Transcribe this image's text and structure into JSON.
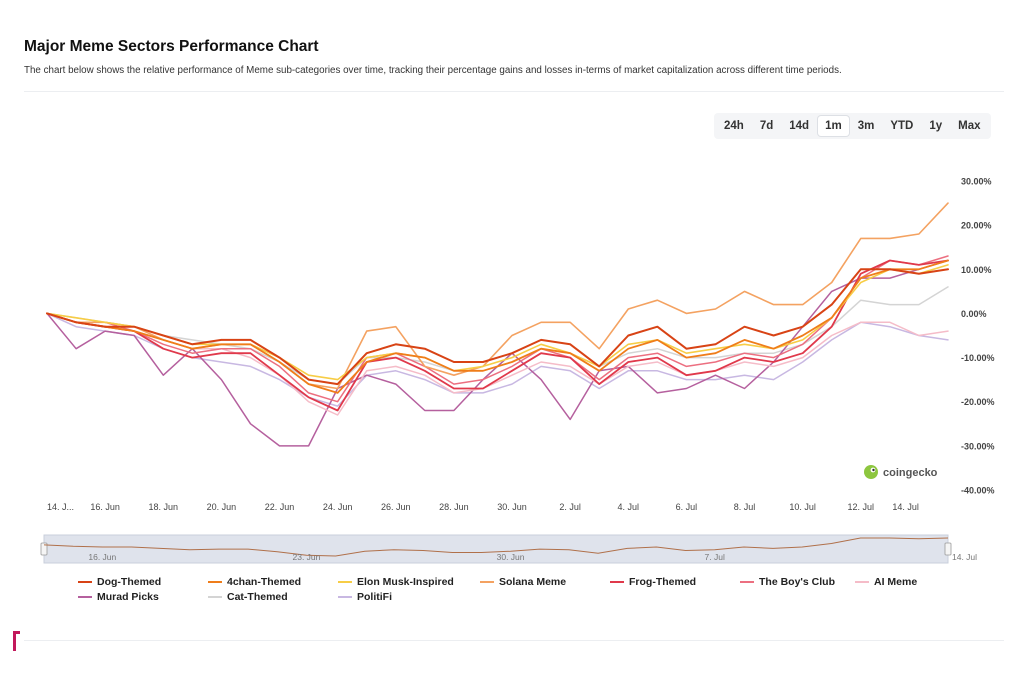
{
  "header": {
    "title": "Major Meme Sectors Performance Chart",
    "subtitle": "The chart below shows the relative performance of Meme sub-categories over time, tracking their percentage gains and losses in-terms of market capitalization across different time periods."
  },
  "range_selector": {
    "options": [
      "24h",
      "7d",
      "14d",
      "1m",
      "3m",
      "YTD",
      "1y",
      "Max"
    ],
    "active": "1m"
  },
  "watermark": {
    "text": "coingecko",
    "logo_icon": "gecko-logo-icon"
  },
  "chart_data": {
    "type": "line",
    "title": "Major Meme Sectors Performance Chart",
    "xlabel": "",
    "ylabel": "",
    "ylim": [
      -40,
      30
    ],
    "y_ticks": [
      30,
      20,
      10,
      0,
      -10,
      -20,
      -30,
      -40
    ],
    "y_tick_labels": [
      "30.00%",
      "20.00%",
      "10.00%",
      "0.00%",
      "-10.00%",
      "-20.00%",
      "-30.00%",
      "-40.00%"
    ],
    "x_tick_labels": [
      "14. J...",
      "16. Jun",
      "18. Jun",
      "20. Jun",
      "22. Jun",
      "24. Jun",
      "26. Jun",
      "28. Jun",
      "30. Jun",
      "2. Jul",
      "4. Jul",
      "6. Jul",
      "8. Jul",
      "10. Jul",
      "12. Jul",
      "14. Jul"
    ],
    "x_tick_index": [
      0,
      2,
      4,
      6,
      8,
      10,
      12,
      14,
      16,
      18,
      20,
      22,
      24,
      26,
      28,
      30
    ],
    "navigator_labels": [
      "16. Jun",
      "23. Jun",
      "30. Jun",
      "7. Jul",
      "14. Jul"
    ],
    "navigator_label_index": [
      2,
      9,
      16,
      23,
      30
    ],
    "grid": false,
    "legend_position": "bottom",
    "series": [
      {
        "name": "Dog-Themed",
        "color": "#d84315",
        "width": 2.0,
        "values": [
          0,
          -2,
          -3,
          -3,
          -5,
          -7,
          -6,
          -6,
          -10,
          -15,
          -16,
          -9,
          -7,
          -8,
          -11,
          -11,
          -9,
          -6,
          -7,
          -12,
          -5,
          -3,
          -8,
          -7,
          -3,
          -5,
          -3,
          2,
          10,
          10,
          9,
          10
        ]
      },
      {
        "name": "4chan-Themed",
        "color": "#ef7d1a",
        "width": 1.8,
        "values": [
          0,
          -2,
          -3,
          -4,
          -6,
          -8,
          -7,
          -7,
          -11,
          -16,
          -18,
          -11,
          -9,
          -10,
          -13,
          -13,
          -11,
          -8,
          -9,
          -13,
          -8,
          -6,
          -10,
          -9,
          -6,
          -8,
          -5,
          -1,
          8,
          10,
          10,
          12
        ]
      },
      {
        "name": "Elon Musk-Inspired",
        "color": "#f7cd46",
        "width": 1.6,
        "values": [
          0,
          -1,
          -2,
          -3,
          -5,
          -7,
          -7,
          -7,
          -10,
          -14,
          -15,
          -10,
          -9,
          -10,
          -13,
          -12,
          -10,
          -7,
          -9,
          -12,
          -7,
          -6,
          -9,
          -8,
          -7,
          -8,
          -6,
          -1,
          7,
          10,
          9,
          11
        ]
      },
      {
        "name": "Solana Meme",
        "color": "#f4a261",
        "width": 1.6,
        "values": [
          0,
          -2,
          -2,
          -3,
          -6,
          -8,
          -7,
          -7,
          -11,
          -16,
          -17,
          -4,
          -3,
          -12,
          -14,
          -12,
          -5,
          -2,
          -2,
          -8,
          1,
          3,
          0,
          1,
          5,
          2,
          2,
          7,
          17,
          17,
          18,
          25
        ]
      },
      {
        "name": "Frog-Themed",
        "color": "#e0394b",
        "width": 1.8,
        "values": [
          0,
          -2,
          -3,
          -4,
          -8,
          -10,
          -9,
          -9,
          -14,
          -19,
          -22,
          -11,
          -10,
          -13,
          -17,
          -17,
          -13,
          -9,
          -10,
          -16,
          -11,
          -10,
          -14,
          -13,
          -10,
          -11,
          -9,
          -3,
          9,
          12,
          11,
          12
        ]
      },
      {
        "name": "The Boy's Club",
        "color": "#ec6f80",
        "width": 1.5,
        "values": [
          0,
          -2,
          -2,
          -4,
          -7,
          -9,
          -8,
          -8,
          -12,
          -18,
          -20,
          -10,
          -9,
          -12,
          -16,
          -15,
          -12,
          -8,
          -10,
          -15,
          -10,
          -9,
          -12,
          -11,
          -9,
          -10,
          -7,
          -1,
          8,
          12,
          11,
          13
        ]
      },
      {
        "name": "AI Meme",
        "color": "#f5bcc8",
        "width": 1.5,
        "values": [
          0,
          -2,
          -3,
          -4,
          -6,
          -8,
          -8,
          -10,
          -14,
          -20,
          -23,
          -13,
          -12,
          -14,
          -18,
          -17,
          -14,
          -11,
          -12,
          -16,
          -12,
          -11,
          -14,
          -13,
          -11,
          -12,
          -10,
          -5,
          -2,
          -2,
          -5,
          -4
        ]
      },
      {
        "name": "Murad Picks",
        "color": "#b5609e",
        "width": 1.5,
        "values": [
          0,
          -8,
          -4,
          -5,
          -14,
          -8,
          -15,
          -25,
          -30,
          -30,
          -17,
          -14,
          -16,
          -22,
          -22,
          -15,
          -9,
          -15,
          -24,
          -13,
          -12,
          -18,
          -17,
          -14,
          -17,
          -11,
          -3,
          5,
          8,
          8,
          10,
          12
        ]
      },
      {
        "name": "Cat-Themed",
        "color": "#d4d4d4",
        "width": 1.5,
        "values": [
          0,
          -1,
          -2,
          -3,
          -5,
          -6,
          -7,
          -8,
          -11,
          -15,
          -16,
          -10,
          -10,
          -11,
          -13,
          -13,
          -11,
          -8,
          -9,
          -12,
          -9,
          -8,
          -10,
          -10,
          -9,
          -9,
          -7,
          -3,
          3,
          2,
          2,
          6
        ]
      },
      {
        "name": "PolitiFi",
        "color": "#c8b8e2",
        "width": 1.5,
        "values": [
          0,
          -3,
          -4,
          -5,
          -8,
          -10,
          -11,
          -12,
          -15,
          -19,
          -21,
          -14,
          -13,
          -15,
          -18,
          -18,
          -16,
          -12,
          -13,
          -17,
          -13,
          -13,
          -15,
          -15,
          -14,
          -15,
          -11,
          -6,
          -2,
          -3,
          -5,
          -6
        ]
      }
    ]
  }
}
